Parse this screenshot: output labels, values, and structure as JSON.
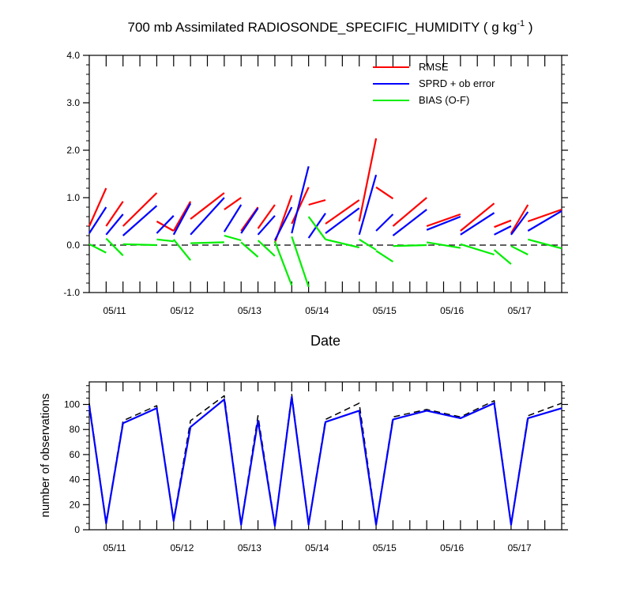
{
  "chart_data": [
    {
      "type": "line",
      "title": "700 mb Assimilated RADIOSONDE_SPECIFIC_HUMIDITY ( g kg",
      "title_exponent": "-1",
      "title_close": " )",
      "xlabel": "Date",
      "ylabel": "",
      "x_range": [
        0,
        28
      ],
      "ylim": [
        -1.0,
        4.0
      ],
      "yticks": [
        -1.0,
        0.0,
        1.0,
        2.0,
        3.0,
        4.0
      ],
      "ytick_labels": [
        "-1.0",
        "0.0",
        "1.0",
        "2.0",
        "3.0",
        "4.0"
      ],
      "xtick_positions": [
        1.5,
        5.5,
        9.5,
        13.5,
        17.5,
        21.5,
        25.5
      ],
      "xtick_labels": [
        "05/11",
        "05/12",
        "05/13",
        "05/14",
        "05/15",
        "05/16",
        "05/17"
      ],
      "legend_position": "top-right",
      "zero_line": "dashed",
      "series": [
        {
          "name": "RMSE",
          "color": "#ff0000",
          "segments": [
            {
              "x": [
                0,
                1
              ],
              "y": [
                0.4,
                1.2
              ]
            },
            {
              "x": [
                1,
                2
              ],
              "y": [
                0.4,
                0.92
              ]
            },
            {
              "x": [
                2,
                4
              ],
              "y": [
                0.4,
                1.1
              ]
            },
            {
              "x": [
                4,
                5
              ],
              "y": [
                0.5,
                0.3
              ]
            },
            {
              "x": [
                5,
                6
              ],
              "y": [
                0.3,
                0.92
              ]
            },
            {
              "x": [
                6,
                8
              ],
              "y": [
                0.55,
                1.1
              ]
            },
            {
              "x": [
                8,
                9
              ],
              "y": [
                0.75,
                1.0
              ]
            },
            {
              "x": [
                9,
                10
              ],
              "y": [
                0.3,
                0.8
              ]
            },
            {
              "x": [
                10,
                11
              ],
              "y": [
                0.35,
                0.85
              ]
            },
            {
              "x": [
                11,
                12
              ],
              "y": [
                0.05,
                1.05
              ]
            },
            {
              "x": [
                12,
                13
              ],
              "y": [
                0.45,
                1.22
              ]
            },
            {
              "x": [
                13,
                14
              ],
              "y": [
                0.85,
                0.95
              ]
            },
            {
              "x": [
                14,
                16
              ],
              "y": [
                0.45,
                0.95
              ]
            },
            {
              "x": [
                16,
                17
              ],
              "y": [
                0.5,
                2.25
              ]
            },
            {
              "x": [
                17,
                18
              ],
              "y": [
                1.22,
                0.98
              ]
            },
            {
              "x": [
                18,
                20
              ],
              "y": [
                0.4,
                1.0
              ]
            },
            {
              "x": [
                20,
                22
              ],
              "y": [
                0.4,
                0.65
              ]
            },
            {
              "x": [
                22,
                24
              ],
              "y": [
                0.3,
                0.88
              ]
            },
            {
              "x": [
                24,
                25
              ],
              "y": [
                0.38,
                0.52
              ]
            },
            {
              "x": [
                25,
                26
              ],
              "y": [
                0.25,
                0.85
              ]
            },
            {
              "x": [
                26,
                28
              ],
              "y": [
                0.5,
                0.75
              ]
            }
          ]
        },
        {
          "name": "SPRD + ob error",
          "color": "#0000ff",
          "segments": [
            {
              "x": [
                0,
                1
              ],
              "y": [
                0.25,
                0.8
              ]
            },
            {
              "x": [
                1,
                2
              ],
              "y": [
                0.22,
                0.65
              ]
            },
            {
              "x": [
                2,
                4
              ],
              "y": [
                0.2,
                0.83
              ]
            },
            {
              "x": [
                4,
                5
              ],
              "y": [
                0.25,
                0.62
              ]
            },
            {
              "x": [
                5,
                6
              ],
              "y": [
                0.22,
                0.88
              ]
            },
            {
              "x": [
                6,
                8
              ],
              "y": [
                0.22,
                1.0
              ]
            },
            {
              "x": [
                8,
                9
              ],
              "y": [
                0.28,
                0.85
              ]
            },
            {
              "x": [
                9,
                10
              ],
              "y": [
                0.25,
                0.78
              ]
            },
            {
              "x": [
                10,
                11
              ],
              "y": [
                0.22,
                0.62
              ]
            },
            {
              "x": [
                11,
                12
              ],
              "y": [
                0.1,
                0.8
              ]
            },
            {
              "x": [
                12,
                13
              ],
              "y": [
                0.25,
                1.66
              ]
            },
            {
              "x": [
                13,
                14
              ],
              "y": [
                0.15,
                0.67
              ]
            },
            {
              "x": [
                14,
                16
              ],
              "y": [
                0.25,
                0.78
              ]
            },
            {
              "x": [
                16,
                17
              ],
              "y": [
                0.22,
                1.48
              ]
            },
            {
              "x": [
                17,
                18
              ],
              "y": [
                0.3,
                0.65
              ]
            },
            {
              "x": [
                18,
                20
              ],
              "y": [
                0.2,
                0.75
              ]
            },
            {
              "x": [
                20,
                22
              ],
              "y": [
                0.32,
                0.6
              ]
            },
            {
              "x": [
                22,
                24
              ],
              "y": [
                0.22,
                0.68
              ]
            },
            {
              "x": [
                24,
                25
              ],
              "y": [
                0.22,
                0.4
              ]
            },
            {
              "x": [
                25,
                26
              ],
              "y": [
                0.22,
                0.7
              ]
            },
            {
              "x": [
                26,
                28
              ],
              "y": [
                0.3,
                0.72
              ]
            }
          ]
        },
        {
          "name": "BIAS (O-F)",
          "color": "#00ee00",
          "segments": [
            {
              "x": [
                0,
                1
              ],
              "y": [
                0.02,
                -0.16
              ]
            },
            {
              "x": [
                1,
                2
              ],
              "y": [
                0.14,
                -0.22
              ]
            },
            {
              "x": [
                2,
                4
              ],
              "y": [
                0.02,
                0.0
              ]
            },
            {
              "x": [
                4,
                5
              ],
              "y": [
                0.12,
                0.08
              ]
            },
            {
              "x": [
                5,
                6
              ],
              "y": [
                0.12,
                -0.32
              ]
            },
            {
              "x": [
                6,
                8
              ],
              "y": [
                0.04,
                0.06
              ]
            },
            {
              "x": [
                8,
                9
              ],
              "y": [
                0.2,
                0.1
              ]
            },
            {
              "x": [
                9,
                10
              ],
              "y": [
                0.06,
                -0.25
              ]
            },
            {
              "x": [
                10,
                11
              ],
              "y": [
                0.1,
                -0.23
              ]
            },
            {
              "x": [
                11,
                12
              ],
              "y": [
                0.08,
                -0.85
              ]
            },
            {
              "x": [
                12,
                13
              ],
              "y": [
                0.18,
                -0.88
              ]
            },
            {
              "x": [
                13,
                14
              ],
              "y": [
                0.6,
                0.12
              ]
            },
            {
              "x": [
                14,
                16
              ],
              "y": [
                0.12,
                -0.05
              ]
            },
            {
              "x": [
                16,
                17
              ],
              "y": [
                0.12,
                -0.1
              ]
            },
            {
              "x": [
                17,
                18
              ],
              "y": [
                -0.12,
                -0.35
              ]
            },
            {
              "x": [
                18,
                20
              ],
              "y": [
                -0.02,
                0.0
              ]
            },
            {
              "x": [
                20,
                22
              ],
              "y": [
                0.06,
                -0.06
              ]
            },
            {
              "x": [
                22,
                24
              ],
              "y": [
                0.02,
                -0.2
              ]
            },
            {
              "x": [
                24,
                25
              ],
              "y": [
                -0.1,
                -0.4
              ]
            },
            {
              "x": [
                25,
                26
              ],
              "y": [
                -0.02,
                -0.2
              ]
            },
            {
              "x": [
                26,
                28
              ],
              "y": [
                0.12,
                -0.07
              ]
            }
          ]
        }
      ]
    },
    {
      "type": "line",
      "title": "",
      "xlabel": "",
      "ylabel": "number of observations",
      "x_range": [
        0,
        28
      ],
      "ylim": [
        0,
        118
      ],
      "yticks": [
        0,
        20,
        40,
        60,
        80,
        100
      ],
      "ytick_labels": [
        "0",
        "20",
        "40",
        "60",
        "80",
        "100"
      ],
      "xtick_positions": [
        1.5,
        5.5,
        9.5,
        13.5,
        17.5,
        21.5,
        25.5
      ],
      "xtick_labels": [
        "05/11",
        "05/12",
        "05/13",
        "05/14",
        "05/15",
        "05/16",
        "05/17"
      ],
      "series": [
        {
          "name": "",
          "style": "dashed",
          "color": "#000000",
          "x": [
            0,
            1,
            2,
            4,
            5,
            6,
            8,
            9,
            10,
            11,
            12,
            13,
            14,
            16,
            17,
            18,
            20,
            22,
            24,
            25,
            26,
            28
          ],
          "y": [
            101,
            6,
            87,
            99,
            8,
            87,
            107,
            5,
            91,
            4,
            108,
            5,
            88,
            101,
            5,
            90,
            96,
            90,
            103,
            5,
            91,
            101
          ]
        },
        {
          "name": "",
          "style": "solid",
          "color": "#0000ff",
          "x": [
            0,
            1,
            2,
            4,
            5,
            6,
            8,
            9,
            10,
            11,
            12,
            13,
            14,
            16,
            17,
            18,
            20,
            22,
            24,
            25,
            26,
            28
          ],
          "y": [
            99,
            5,
            85,
            97,
            7,
            82,
            104,
            4,
            87,
            3,
            106,
            4,
            86,
            95,
            4,
            88,
            95,
            89,
            101,
            4,
            89,
            97
          ]
        }
      ]
    }
  ]
}
